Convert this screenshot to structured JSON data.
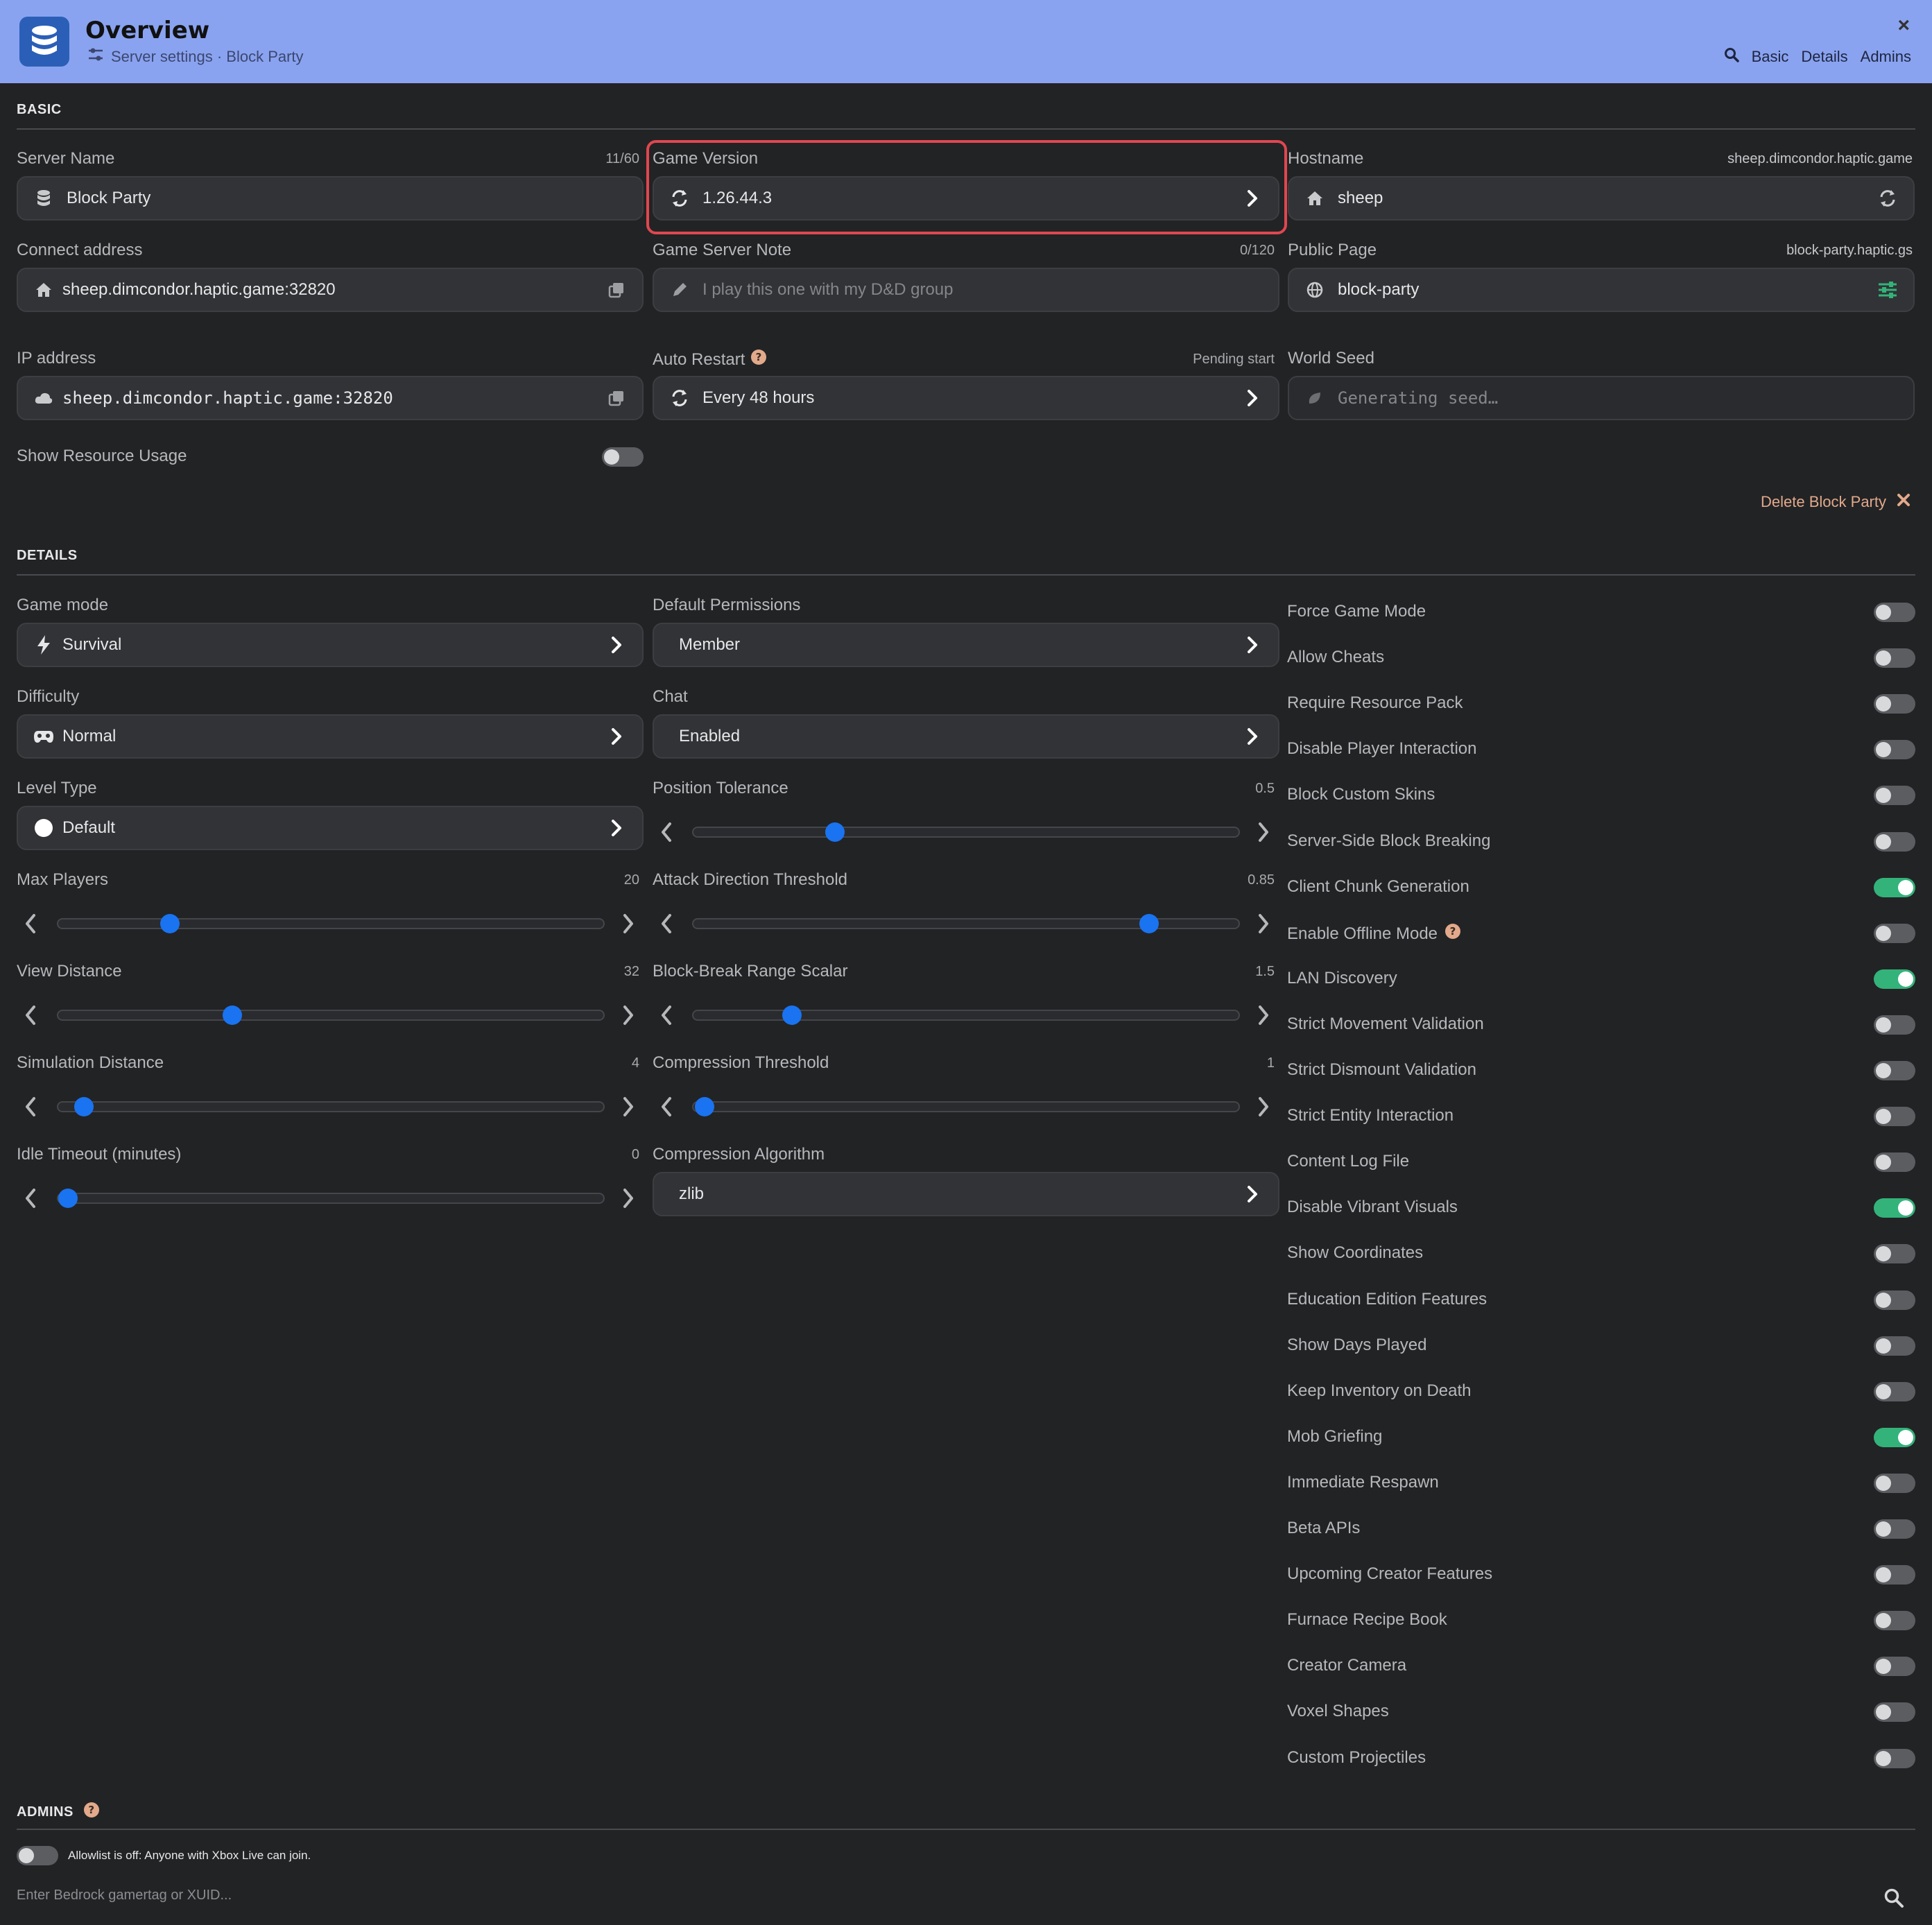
{
  "header": {
    "title": "Overview",
    "breadcrumb": "Server settings · Block Party",
    "nav": [
      "Basic",
      "Details",
      "Admins"
    ],
    "close_label": "×"
  },
  "basic": {
    "section_title": "BASIC",
    "server_name": {
      "label": "Server Name",
      "count": "11/60",
      "value": "Block Party",
      "icon": "database-icon"
    },
    "game_version": {
      "label": "Game Version",
      "value": "1.26.44.3",
      "icon": "refresh-icon"
    },
    "hostname": {
      "label": "Hostname",
      "hint": "sheep.dimcondor.haptic.game",
      "value": "sheep",
      "icon": "home-icon"
    },
    "connect_address": {
      "label": "Connect address",
      "value": "sheep.dimcondor.haptic.game:32820",
      "icon": "home-icon"
    },
    "game_server_note": {
      "label": "Game Server Note",
      "count": "0/120",
      "placeholder": "I play this one with my D&D group",
      "icon": "pencil-icon"
    },
    "public_page": {
      "label": "Public Page",
      "hint": "block-party.haptic.gs",
      "value": "block-party",
      "icon": "globe-icon"
    },
    "ip_address": {
      "label": "IP address",
      "value": "sheep.dimcondor.haptic.game:32820",
      "icon": "cloud-icon"
    },
    "auto_restart": {
      "label": "Auto Restart",
      "hint": "Pending start",
      "value": "Every 48 hours",
      "icon": "refresh-icon"
    },
    "world_seed": {
      "label": "World Seed",
      "placeholder": "Generating seed…",
      "icon": "leaf-icon"
    },
    "show_resource_usage": {
      "label": "Show Resource Usage",
      "on": false
    },
    "delete_label": "Delete Block Party"
  },
  "details": {
    "section_title": "DETAILS",
    "selects_left": [
      {
        "label": "Game mode",
        "value": "Survival",
        "icon": "bolt-icon"
      },
      {
        "label": "Difficulty",
        "value": "Normal",
        "icon": "gamepad-icon"
      },
      {
        "label": "Level Type",
        "value": "Default",
        "icon": "circle-icon"
      }
    ],
    "selects_mid": [
      {
        "label": "Default Permissions",
        "value": "Member"
      },
      {
        "label": "Chat",
        "value": "Enabled"
      }
    ],
    "sliders_left": [
      {
        "label": "Max Players",
        "value": "20",
        "fraction": 0.2
      },
      {
        "label": "View Distance",
        "value": "32",
        "fraction": 0.32
      },
      {
        "label": "Simulation Distance",
        "value": "4",
        "fraction": 0.05
      },
      {
        "label": "Idle Timeout (minutes)",
        "value": "0",
        "fraction": 0.0
      }
    ],
    "sliders_mid": [
      {
        "label": "Position Tolerance",
        "value": "0.5",
        "fraction": 0.26
      },
      {
        "label": "Attack Direction Threshold",
        "value": "0.85",
        "fraction": 0.84
      },
      {
        "label": "Block-Break Range Scalar",
        "value": "1.5",
        "fraction": 0.18
      },
      {
        "label": "Compression Threshold",
        "value": "1",
        "fraction": 0.0
      }
    ],
    "compression_algorithm": {
      "label": "Compression Algorithm",
      "value": "zlib"
    },
    "toggles": [
      {
        "label": "Force Game Mode",
        "on": false
      },
      {
        "label": "Allow Cheats",
        "on": false
      },
      {
        "label": "Require Resource Pack",
        "on": false
      },
      {
        "label": "Disable Player Interaction",
        "on": false
      },
      {
        "label": "Block Custom Skins",
        "on": false
      },
      {
        "label": "Server-Side Block Breaking",
        "on": false
      },
      {
        "label": "Client Chunk Generation",
        "on": true
      },
      {
        "label": "Enable Offline Mode",
        "on": false,
        "help": true
      },
      {
        "label": "LAN Discovery",
        "on": true
      },
      {
        "label": "Strict Movement Validation",
        "on": false
      },
      {
        "label": "Strict Dismount Validation",
        "on": false
      },
      {
        "label": "Strict Entity Interaction",
        "on": false
      },
      {
        "label": "Content Log File",
        "on": false
      },
      {
        "label": "Disable Vibrant Visuals",
        "on": true
      },
      {
        "label": "Show Coordinates",
        "on": false
      },
      {
        "label": "Education Edition Features",
        "on": false
      },
      {
        "label": "Show Days Played",
        "on": false
      },
      {
        "label": "Keep Inventory on Death",
        "on": false
      },
      {
        "label": "Mob Griefing",
        "on": true
      },
      {
        "label": "Immediate Respawn",
        "on": false
      },
      {
        "label": "Beta APIs",
        "on": false
      },
      {
        "label": "Upcoming Creator Features",
        "on": false
      },
      {
        "label": "Furnace Recipe Book",
        "on": false
      },
      {
        "label": "Creator Camera",
        "on": false
      },
      {
        "label": "Voxel Shapes",
        "on": false
      },
      {
        "label": "Custom Projectiles",
        "on": false
      }
    ]
  },
  "admins": {
    "section_title": "ADMINS",
    "allowlist_text": "Allowlist is off: Anyone with Xbox Live can join.",
    "allowlist_on": false,
    "input_placeholder": "Enter Bedrock gamertag or XUID..."
  },
  "colors": {
    "header_bg": "#8aa3f0",
    "accent": "#1a73f0",
    "toggle_on": "#33b37a",
    "highlight": "#e0474f",
    "danger": "#e2a98b"
  }
}
